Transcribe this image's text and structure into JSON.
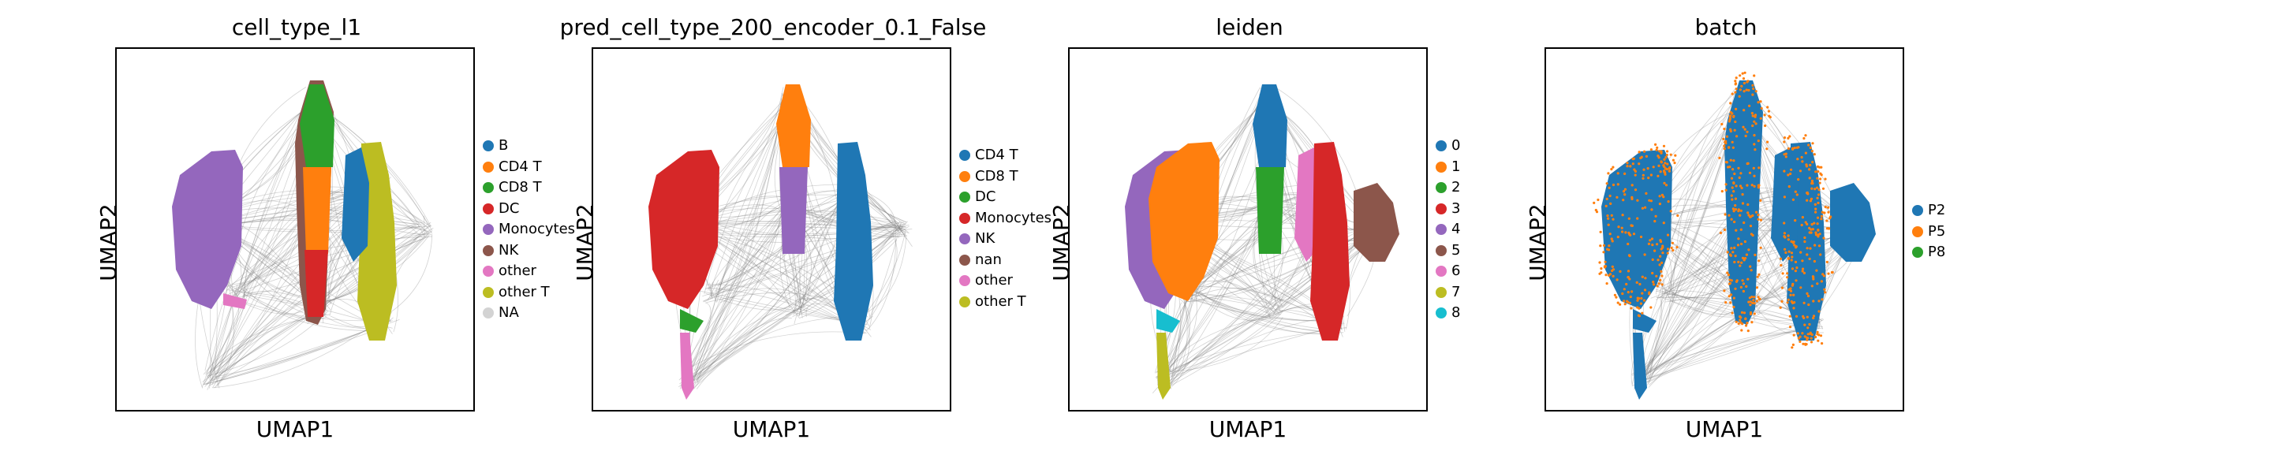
{
  "chart_data": [
    {
      "type": "scatter",
      "title": "cell_type_l1",
      "xlabel": "UMAP1",
      "ylabel": "UMAP2",
      "grid": false,
      "legend_position": "right",
      "legend": [
        {
          "label": "B",
          "color": "#1f77b4"
        },
        {
          "label": "CD4 T",
          "color": "#ff7f0e"
        },
        {
          "label": "CD8 T",
          "color": "#2ca02c"
        },
        {
          "label": "DC",
          "color": "#d62728"
        },
        {
          "label": "Monocytes",
          "color": "#9467bd"
        },
        {
          "label": "NK",
          "color": "#8c564b"
        },
        {
          "label": "other",
          "color": "#e377c2"
        },
        {
          "label": "other T",
          "color": "#bcbd22"
        },
        {
          "label": "NA",
          "color": "#d3d3d3"
        }
      ],
      "regions": [
        {
          "label": "Monocytes",
          "color": "#9467bd"
        },
        {
          "label": "NK",
          "color": "#8c564b"
        },
        {
          "label": "CD8 T",
          "color": "#2ca02c"
        },
        {
          "label": "CD4 T",
          "color": "#ff7f0e"
        },
        {
          "label": "other T",
          "color": "#bcbd22"
        },
        {
          "label": "B",
          "color": "#1f77b4"
        },
        {
          "label": "DC",
          "color": "#d62728"
        },
        {
          "label": "other",
          "color": "#e377c2"
        }
      ]
    },
    {
      "type": "scatter",
      "title": "pred_cell_type_200_encoder_0.1_False",
      "xlabel": "UMAP1",
      "ylabel": "UMAP2",
      "grid": false,
      "legend_position": "right",
      "legend": [
        {
          "label": "CD4 T",
          "color": "#1f77b4"
        },
        {
          "label": "CD8 T",
          "color": "#ff7f0e"
        },
        {
          "label": "DC",
          "color": "#2ca02c"
        },
        {
          "label": "Monocytes",
          "color": "#d62728"
        },
        {
          "label": "NK",
          "color": "#9467bd"
        },
        {
          "label": "nan",
          "color": "#8c564b"
        },
        {
          "label": "other",
          "color": "#e377c2"
        },
        {
          "label": "other T",
          "color": "#bcbd22"
        }
      ],
      "regions": [
        {
          "label": "Monocytes",
          "color": "#d62728"
        },
        {
          "label": "CD8 T",
          "color": "#ff7f0e"
        },
        {
          "label": "CD4 T",
          "color": "#1f77b4"
        },
        {
          "label": "NK",
          "color": "#9467bd"
        },
        {
          "label": "DC",
          "color": "#2ca02c"
        },
        {
          "label": "other",
          "color": "#e377c2"
        }
      ]
    },
    {
      "type": "scatter",
      "title": "leiden",
      "xlabel": "UMAP1",
      "ylabel": "UMAP2",
      "grid": false,
      "legend_position": "right",
      "legend": [
        {
          "label": "0",
          "color": "#1f77b4"
        },
        {
          "label": "1",
          "color": "#ff7f0e"
        },
        {
          "label": "2",
          "color": "#2ca02c"
        },
        {
          "label": "3",
          "color": "#d62728"
        },
        {
          "label": "4",
          "color": "#9467bd"
        },
        {
          "label": "5",
          "color": "#8c564b"
        },
        {
          "label": "6",
          "color": "#e377c2"
        },
        {
          "label": "7",
          "color": "#bcbd22"
        },
        {
          "label": "8",
          "color": "#17becf"
        }
      ],
      "regions": [
        {
          "label": "4",
          "color": "#9467bd"
        },
        {
          "label": "1",
          "color": "#ff7f0e"
        },
        {
          "label": "0",
          "color": "#1f77b4"
        },
        {
          "label": "2",
          "color": "#2ca02c"
        },
        {
          "label": "6",
          "color": "#e377c2"
        },
        {
          "label": "3",
          "color": "#d62728"
        },
        {
          "label": "5",
          "color": "#8c564b"
        },
        {
          "label": "7",
          "color": "#bcbd22"
        },
        {
          "label": "8",
          "color": "#17becf"
        }
      ]
    },
    {
      "type": "scatter",
      "title": "batch",
      "xlabel": "UMAP1",
      "ylabel": "UMAP2",
      "grid": false,
      "legend_position": "right",
      "legend": [
        {
          "label": "P2",
          "color": "#1f77b4"
        },
        {
          "label": "P5",
          "color": "#ff7f0e"
        },
        {
          "label": "P8",
          "color": "#2ca02c"
        }
      ],
      "regions": [
        {
          "label": "P2",
          "color": "#1f77b4"
        }
      ]
    }
  ]
}
